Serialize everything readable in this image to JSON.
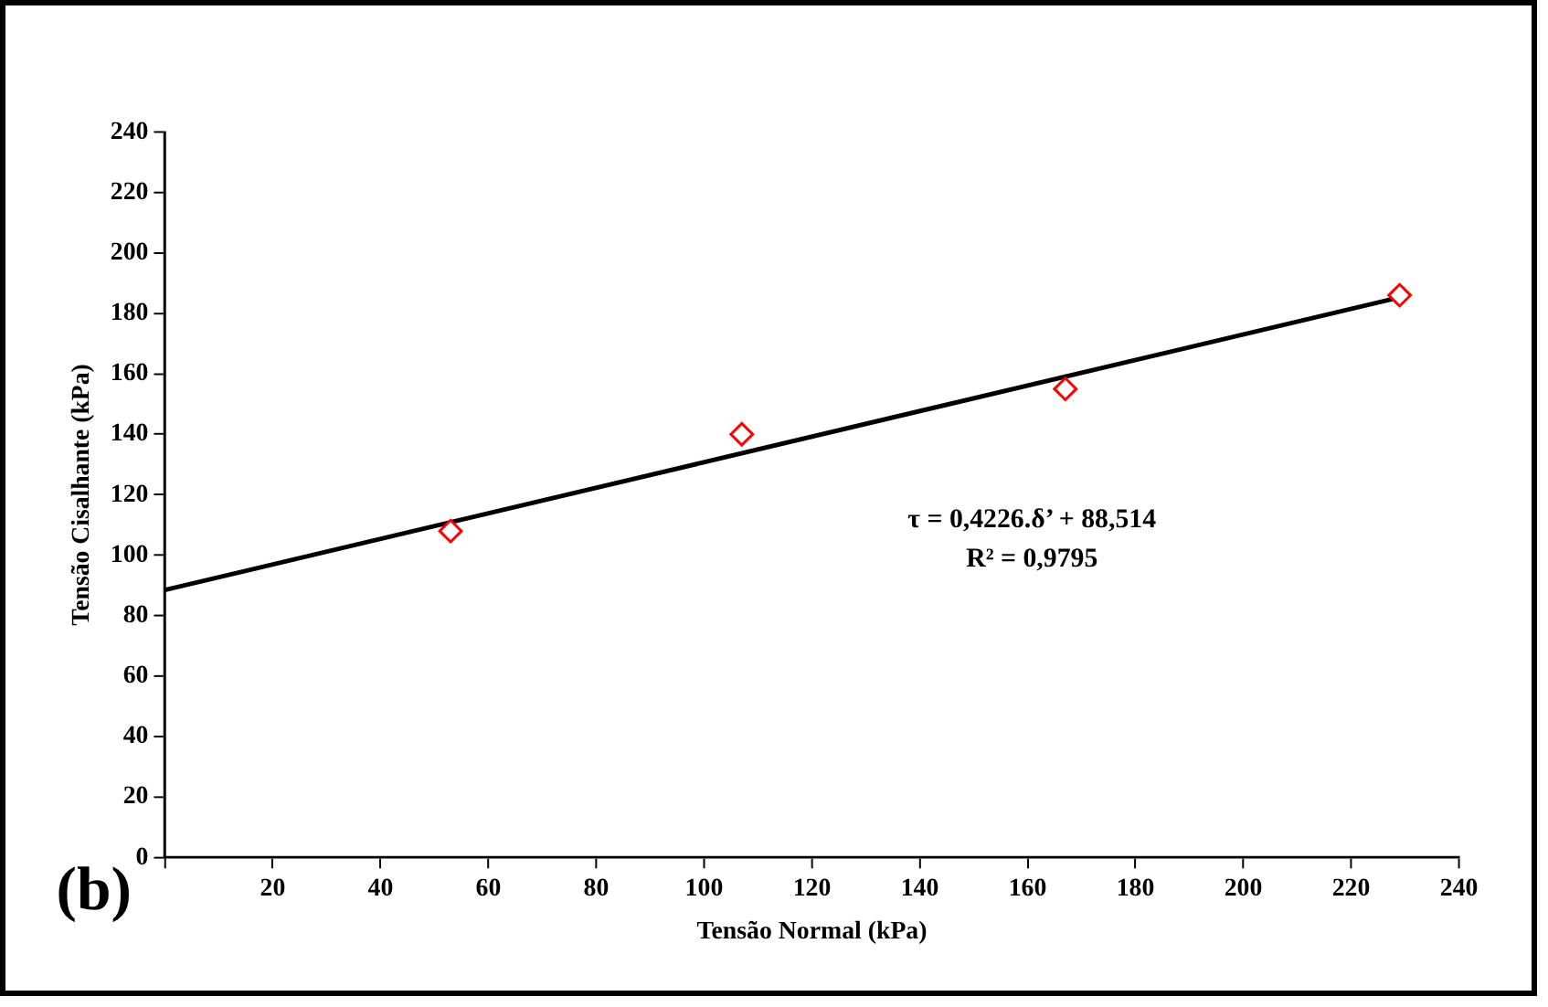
{
  "chart_data": {
    "type": "scatter",
    "xlabel": "Tensão Normal (kPa)",
    "ylabel": "Tensão Cisalhante (kPa)",
    "annotations": [
      "(b)",
      "τ = 0,4226.δ’ + 88,514",
      "R² = 0,9795"
    ],
    "series": [
      {
        "color": "#ff0000",
        "marker": "diamond",
        "x": [
          53,
          107,
          167,
          229
        ],
        "values": [
          108,
          140,
          155,
          186
        ]
      },
      {
        "type": "line",
        "color": "#000000",
        "marker": "none",
        "line_style": "solid",
        "x": [
          0,
          229
        ],
        "values": [
          88.5,
          185.3
        ]
      }
    ],
    "xlim": [
      0,
      240
    ],
    "xticks": [
      {
        "value": 0,
        "label": null
      },
      20,
      40,
      60,
      80,
      100,
      120,
      140,
      160,
      180,
      200,
      220,
      240
    ],
    "ylim": [
      0,
      240
    ],
    "yticks": [
      0,
      20,
      40,
      60,
      80,
      100,
      120,
      140,
      160,
      180,
      200,
      220,
      240
    ],
    "grid": false,
    "legend": false
  }
}
